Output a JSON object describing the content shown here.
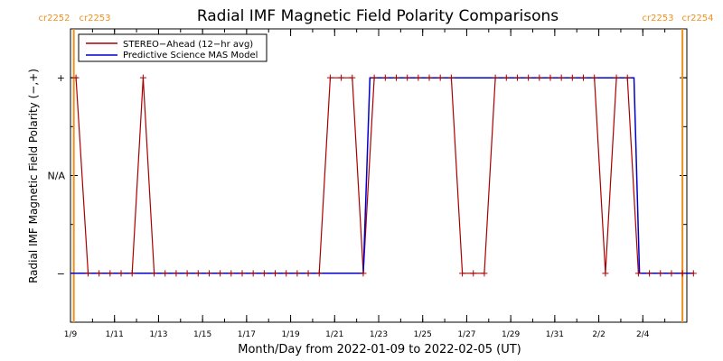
{
  "chart_data": {
    "type": "line",
    "title": "Radial IMF Magnetic Field Polarity Comparisons",
    "xlabel": "Month/Day from 2022-01-09 to 2022-02-05 (UT)",
    "ylabel": "Radial IMF Magnetic Field Polarity (−,+)",
    "x_tick_labels": [
      "1/9",
      "1/11",
      "1/13",
      "1/15",
      "1/17",
      "1/19",
      "1/21",
      "1/23",
      "1/25",
      "1/27",
      "1/29",
      "1/31",
      "2/2",
      "2/4"
    ],
    "y_tick_labels": [
      "−",
      "N/A",
      "+"
    ],
    "y_tick_values": [
      -1,
      0,
      1
    ],
    "ylim": [
      -1.5,
      1.5
    ],
    "xlim_days": [
      0,
      28
    ],
    "legend_position": "top-left",
    "carrington_markers": [
      {
        "day": 0.15,
        "left_label": "cr2252",
        "right_label": "cr2253"
      },
      {
        "day": 27.8,
        "left_label": "cr2253",
        "right_label": "cr2254"
      }
    ],
    "series": [
      {
        "name": "STEREO−Ahead (12−hr avg)",
        "color": "#aa0000",
        "points": [
          [
            0.25,
            1
          ],
          [
            0.8,
            -1
          ],
          [
            1.3,
            -1
          ],
          [
            1.8,
            -1
          ],
          [
            2.3,
            -1
          ],
          [
            2.8,
            -1
          ],
          [
            3.3,
            1
          ],
          [
            3.8,
            -1
          ],
          [
            4.3,
            -1
          ],
          [
            4.8,
            -1
          ],
          [
            5.3,
            -1
          ],
          [
            5.8,
            -1
          ],
          [
            6.3,
            -1
          ],
          [
            6.8,
            -1
          ],
          [
            7.3,
            -1
          ],
          [
            7.8,
            -1
          ],
          [
            8.3,
            -1
          ],
          [
            8.8,
            -1
          ],
          [
            9.3,
            -1
          ],
          [
            9.8,
            -1
          ],
          [
            10.3,
            -1
          ],
          [
            10.8,
            -1
          ],
          [
            11.3,
            -1
          ],
          [
            11.8,
            1
          ],
          [
            12.3,
            1
          ],
          [
            12.8,
            1
          ],
          [
            13.3,
            -1
          ],
          [
            13.8,
            1
          ],
          [
            14.3,
            1
          ],
          [
            14.8,
            1
          ],
          [
            15.3,
            1
          ],
          [
            15.8,
            1
          ],
          [
            16.3,
            1
          ],
          [
            16.8,
            1
          ],
          [
            17.3,
            1
          ],
          [
            17.8,
            -1
          ],
          [
            18.3,
            -1
          ],
          [
            18.8,
            -1
          ],
          [
            19.3,
            1
          ],
          [
            19.8,
            1
          ],
          [
            20.3,
            1
          ],
          [
            20.8,
            1
          ],
          [
            21.3,
            1
          ],
          [
            21.8,
            1
          ],
          [
            22.3,
            1
          ],
          [
            22.8,
            1
          ],
          [
            23.3,
            1
          ],
          [
            23.8,
            1
          ],
          [
            24.3,
            -1
          ],
          [
            24.8,
            1
          ],
          [
            25.3,
            1
          ],
          [
            25.8,
            -1
          ],
          [
            26.3,
            -1
          ],
          [
            26.8,
            -1
          ],
          [
            27.3,
            -1
          ],
          [
            27.8,
            -1
          ],
          [
            28.3,
            -1
          ]
        ]
      },
      {
        "name": "Predictive Science MAS Model",
        "color": "#0000cc",
        "points": [
          [
            0.0,
            -1
          ],
          [
            13.3,
            -1
          ],
          [
            13.6,
            1
          ],
          [
            25.6,
            1
          ],
          [
            25.85,
            -1
          ],
          [
            28.3,
            -1
          ]
        ]
      }
    ]
  }
}
